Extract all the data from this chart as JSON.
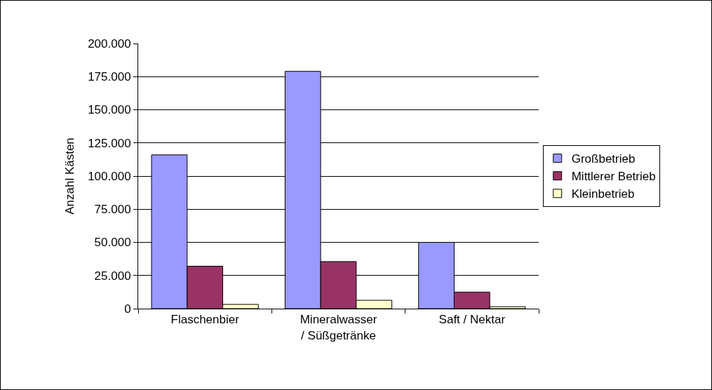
{
  "chart_data": {
    "type": "bar",
    "ylabel": "Anzahl Kästen",
    "categories": [
      "Flaschenbier",
      "Mineralwasser / Süßgetränke",
      "Saft / Nektar"
    ],
    "series": [
      {
        "name": "Großbetrieb",
        "color": "#9999ff",
        "values": [
          116000,
          179000,
          50000
        ]
      },
      {
        "name": "Mittlerer Betrieb",
        "color": "#993366",
        "values": [
          32000,
          35500,
          12500
        ]
      },
      {
        "name": "Kleinbetrieb",
        "color": "#ffffcc",
        "values": [
          3200,
          6300,
          1500
        ]
      }
    ],
    "ylim": [
      0,
      200000
    ],
    "yticks": [
      {
        "value": 0,
        "label": "0"
      },
      {
        "value": 25000,
        "label": "25.000"
      },
      {
        "value": 50000,
        "label": "50.000"
      },
      {
        "value": 75000,
        "label": "75.000"
      },
      {
        "value": 100000,
        "label": "100.000"
      },
      {
        "value": 125000,
        "label": "125.000"
      },
      {
        "value": 150000,
        "label": "150.000"
      },
      {
        "value": 175000,
        "label": "175.000"
      },
      {
        "value": 200000,
        "label": "200.000"
      }
    ],
    "grid": "y",
    "legend": "right"
  }
}
